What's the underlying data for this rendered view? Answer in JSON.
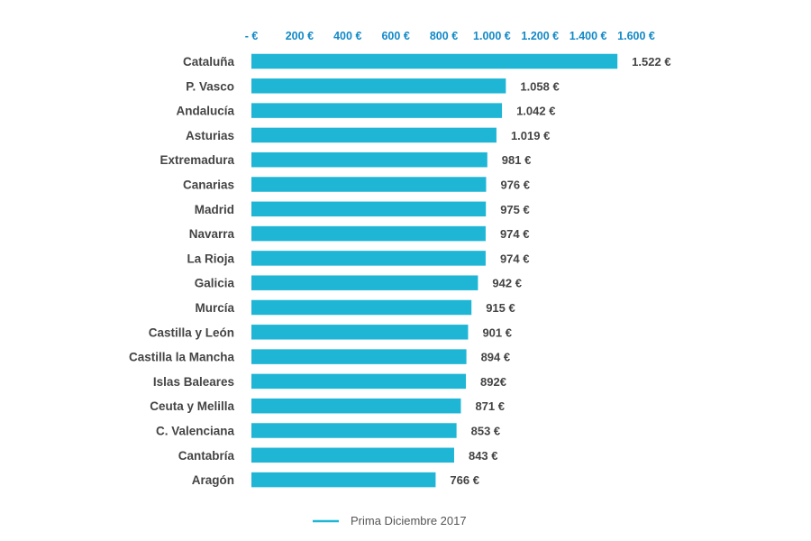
{
  "colors": {
    "bar": "#1fb6d6",
    "axis_text": "#1289c7",
    "label_text": "#444444"
  },
  "chart_data": {
    "type": "bar",
    "orientation": "horizontal",
    "categories": [
      "Cataluña",
      "P. Vasco",
      "Andalucía",
      "Asturias",
      "Extremadura",
      "Canarias",
      "Madrid",
      "Navarra",
      "La Rioja",
      "Galicia",
      "Murcía",
      "Castilla y León",
      "Castilla la Mancha",
      "Islas Baleares",
      "Ceuta y Melilla",
      "C. Valenciana",
      "Cantabría",
      "Aragón"
    ],
    "values": [
      1522,
      1058,
      1042,
      1019,
      981,
      976,
      975,
      974,
      974,
      942,
      915,
      901,
      894,
      892,
      871,
      853,
      843,
      766
    ],
    "value_labels": [
      "1.522 €",
      "1.058 €",
      "1.042 €",
      "1.019 €",
      "981 €",
      "976 €",
      "975 €",
      "974 €",
      "974 €",
      "942 €",
      "915 €",
      "901 €",
      "894 €",
      "892€",
      "871 €",
      "853 €",
      "843 €",
      "766 €"
    ],
    "xlim": [
      0,
      1600
    ],
    "x_ticks": [
      0,
      200,
      400,
      600,
      800,
      1000,
      1200,
      1400,
      1600
    ],
    "x_tick_labels": [
      "- €",
      "200 €",
      "400 €",
      "600 €",
      "800 €",
      "1.000 €",
      "1.200 €",
      "1.400 €",
      "1.600 €"
    ],
    "x_axis_position": "top",
    "grid": false,
    "legend": {
      "position": "bottom",
      "entries": [
        "Prima Diciembre 2017"
      ]
    },
    "title": "",
    "xlabel": "",
    "ylabel": ""
  }
}
